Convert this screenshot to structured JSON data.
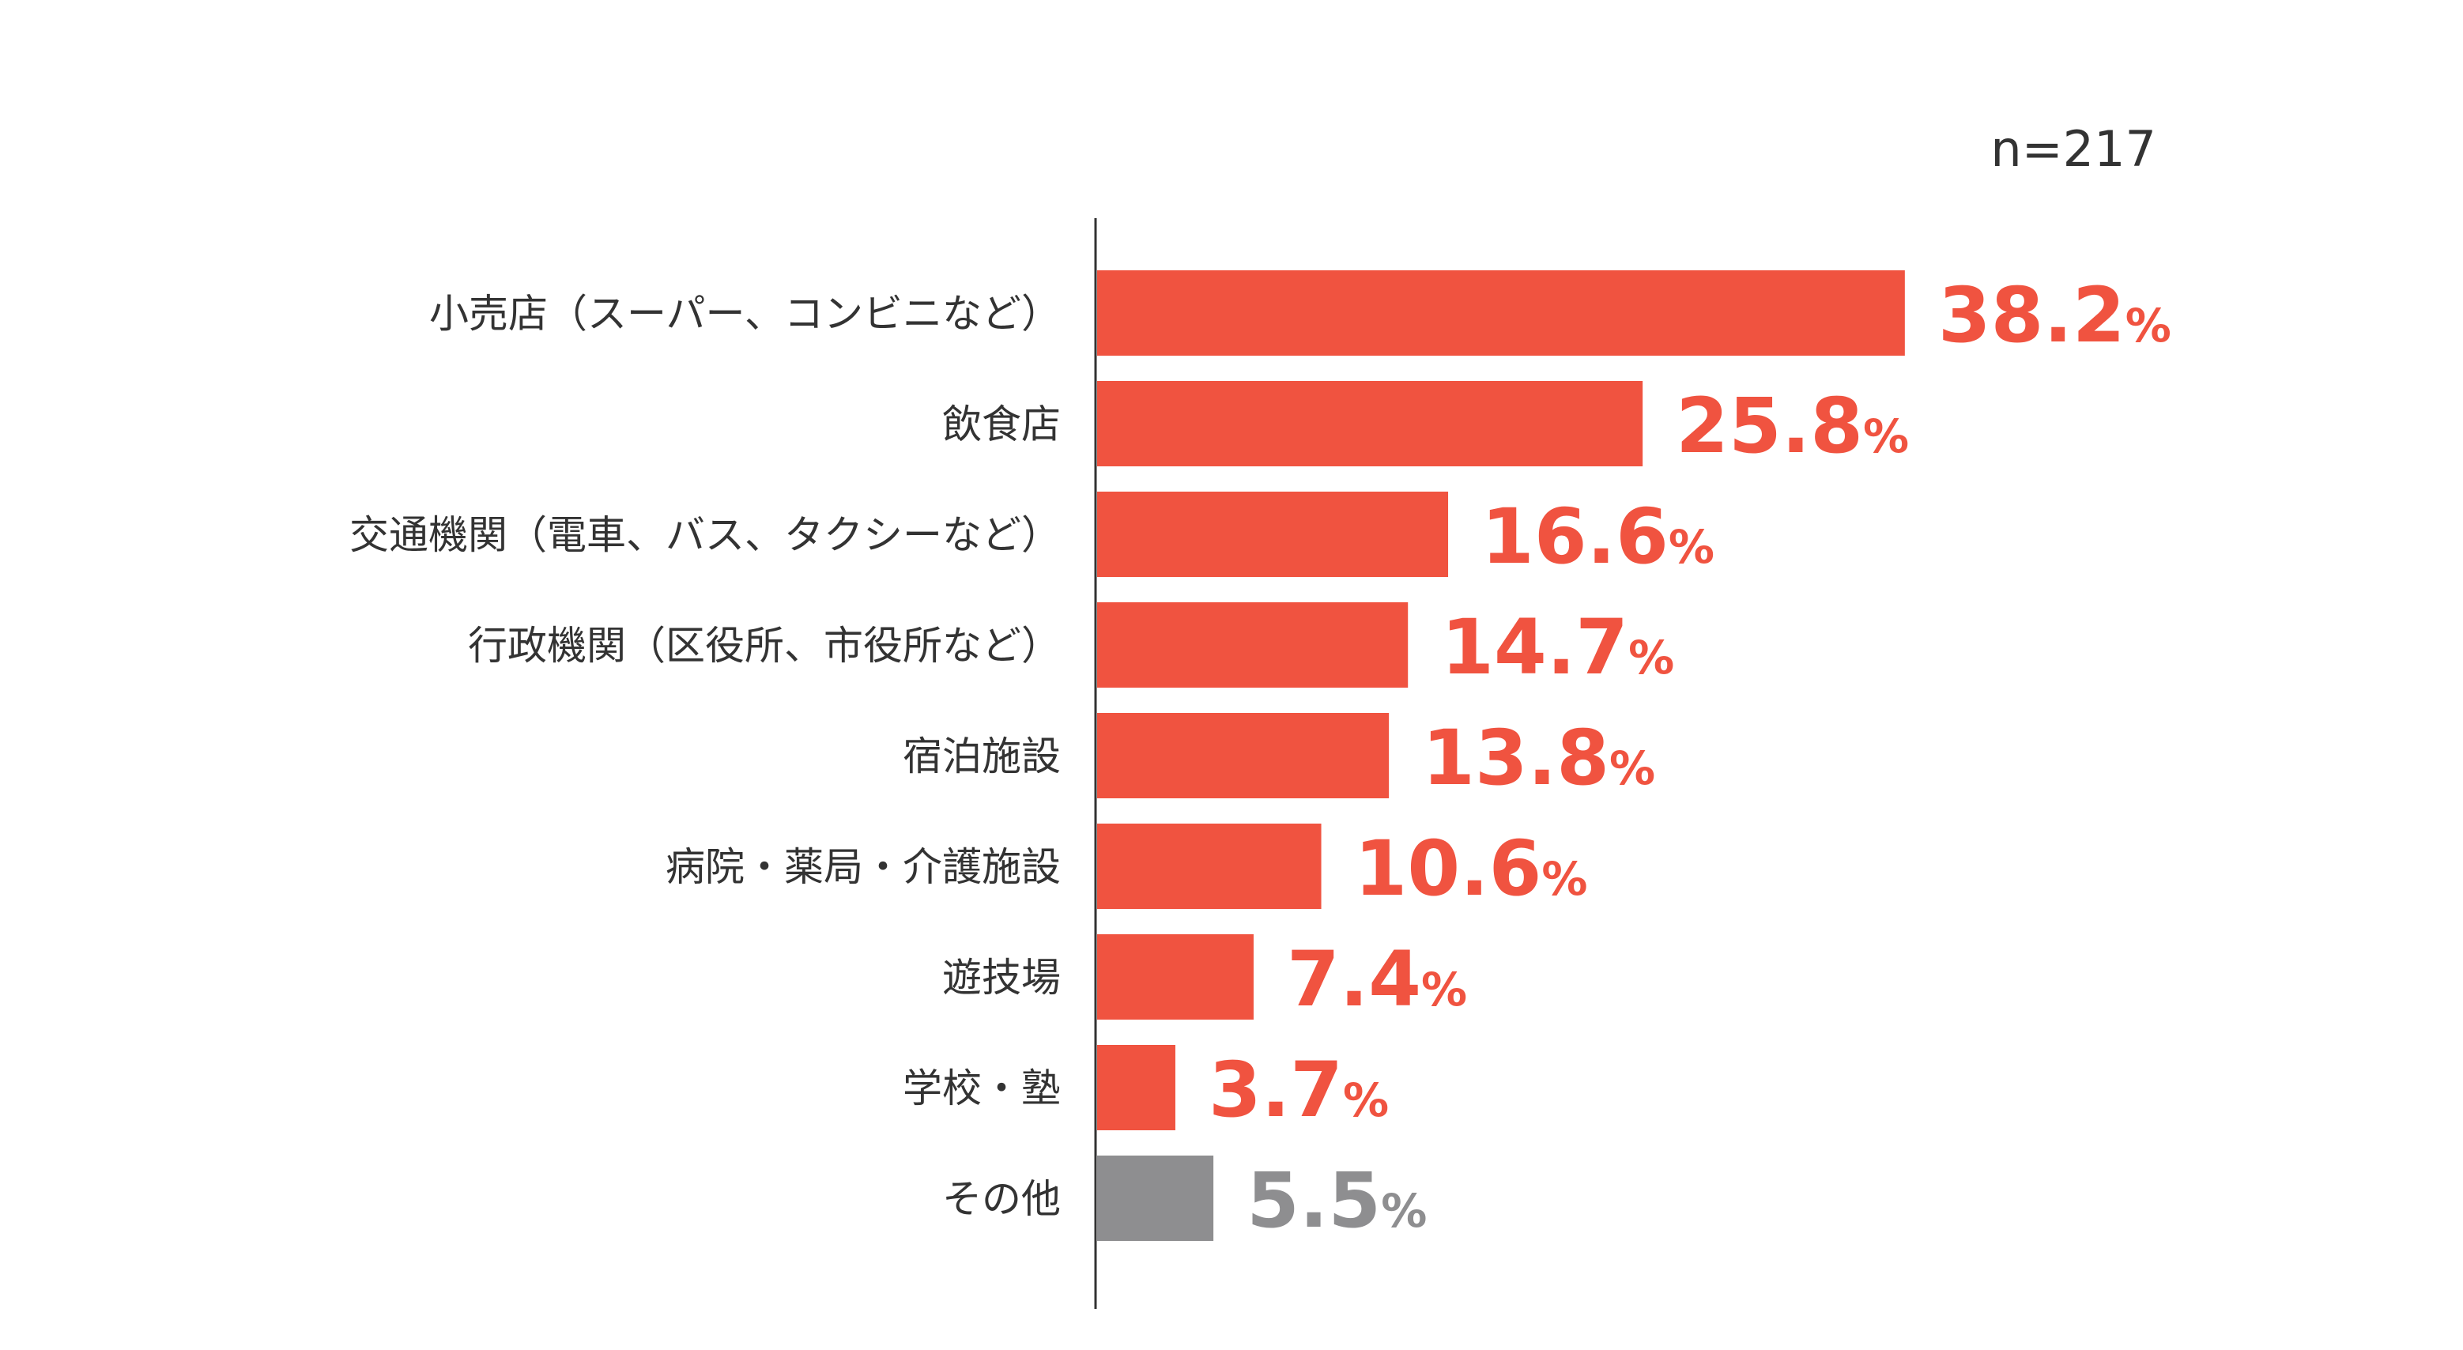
{
  "chart_data": {
    "type": "bar",
    "orientation": "horizontal",
    "sample_size_label": "n=217",
    "categories": [
      "小売店（スーパー、コンビニなど）",
      "飲食店",
      "交通機関（電車、バス、タクシーなど）",
      "行政機関（区役所、市役所など）",
      "宿泊施設",
      "病院・薬局・介護施設",
      "遊技場",
      "学校・塾",
      "その他"
    ],
    "values": [
      38.2,
      25.8,
      16.6,
      14.7,
      13.8,
      10.6,
      7.4,
      3.7,
      5.5
    ],
    "value_labels": [
      "38.2",
      "25.8",
      "16.6",
      "14.7",
      "13.8",
      "10.6",
      "7.4",
      "3.7",
      "5.5"
    ],
    "unit": "%",
    "bar_colors": [
      "#F05340",
      "#F05340",
      "#F05340",
      "#F05340",
      "#F05340",
      "#F05340",
      "#F05340",
      "#F05340",
      "#8E8E90"
    ],
    "title": "",
    "xlabel": "",
    "ylabel": "",
    "grid": false
  }
}
